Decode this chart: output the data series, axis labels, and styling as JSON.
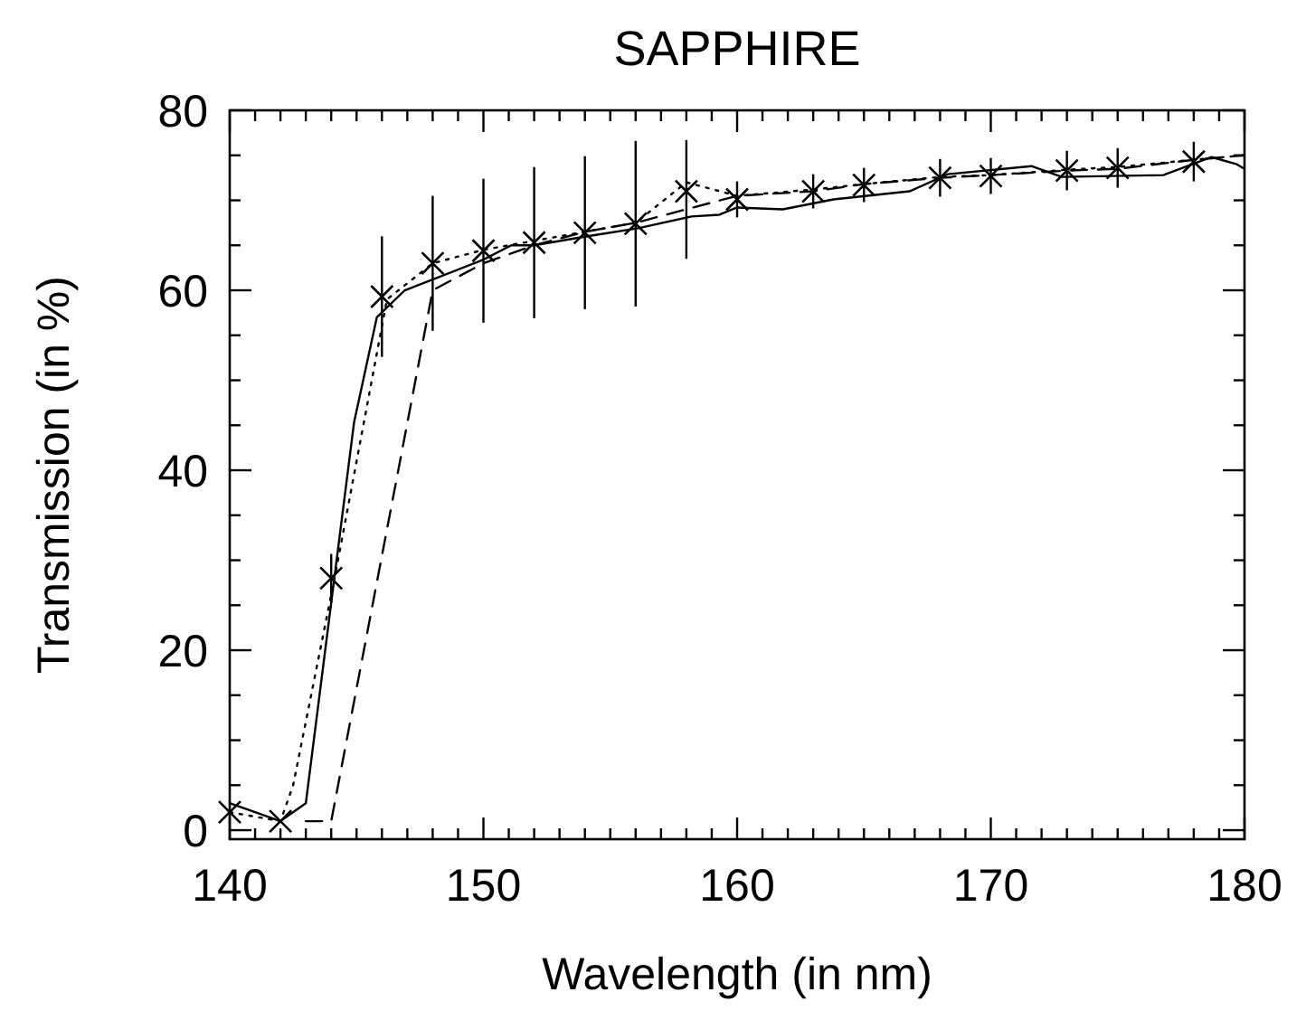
{
  "chart_data": {
    "type": "line",
    "title": "SAPPHIRE",
    "xlabel": "Wavelength (in nm)",
    "ylabel": "Transmission (in %)",
    "xlim": [
      140,
      180
    ],
    "ylim": [
      -1,
      80
    ],
    "xticks": [
      140,
      {
        "value": 141,
        "label": null
      },
      {
        "value": 142,
        "label": null
      },
      {
        "value": 143,
        "label": null
      },
      {
        "value": 144,
        "label": null
      },
      {
        "value": 145,
        "label": null
      },
      {
        "value": 146,
        "label": null
      },
      {
        "value": 147,
        "label": null
      },
      {
        "value": 148,
        "label": null
      },
      {
        "value": 149,
        "label": null
      },
      150,
      {
        "value": 151,
        "label": null
      },
      {
        "value": 152,
        "label": null
      },
      {
        "value": 153,
        "label": null
      },
      {
        "value": 154,
        "label": null
      },
      {
        "value": 155,
        "label": null
      },
      {
        "value": 156,
        "label": null
      },
      {
        "value": 157,
        "label": null
      },
      {
        "value": 158,
        "label": null
      },
      {
        "value": 159,
        "label": null
      },
      160,
      {
        "value": 161,
        "label": null
      },
      {
        "value": 162,
        "label": null
      },
      {
        "value": 163,
        "label": null
      },
      {
        "value": 164,
        "label": null
      },
      {
        "value": 165,
        "label": null
      },
      {
        "value": 166,
        "label": null
      },
      {
        "value": 167,
        "label": null
      },
      {
        "value": 168,
        "label": null
      },
      {
        "value": 169,
        "label": null
      },
      170,
      {
        "value": 171,
        "label": null
      },
      {
        "value": 172,
        "label": null
      },
      {
        "value": 173,
        "label": null
      },
      {
        "value": 174,
        "label": null
      },
      {
        "value": 175,
        "label": null
      },
      {
        "value": 176,
        "label": null
      },
      {
        "value": 177,
        "label": null
      },
      {
        "value": 178,
        "label": null
      },
      {
        "value": 179,
        "label": null
      },
      180
    ],
    "yticks": [
      0,
      {
        "value": 5,
        "label": null
      },
      {
        "value": 10,
        "label": null
      },
      {
        "value": 15,
        "label": null
      },
      20,
      {
        "value": 25,
        "label": null
      },
      {
        "value": 30,
        "label": null
      },
      {
        "value": 35,
        "label": null
      },
      40,
      {
        "value": 45,
        "label": null
      },
      {
        "value": 50,
        "label": null
      },
      {
        "value": 55,
        "label": null
      },
      60,
      {
        "value": 65,
        "label": null
      },
      {
        "value": 70,
        "label": null
      },
      {
        "value": 75,
        "label": null
      },
      80
    ],
    "grid": false,
    "series": [
      {
        "line_style": "solid",
        "color": "#000000",
        "x": [
          140,
          141,
          142,
          143,
          144.9,
          145.8,
          146.9,
          150,
          151.1,
          152,
          154.1,
          156.1,
          158.2,
          159.3,
          160,
          161.8,
          163.8,
          166.8,
          168.3,
          171.6,
          172.8,
          176.8,
          178.7,
          179.7,
          180
        ],
        "values": [
          3,
          2,
          1,
          3,
          45.3,
          57,
          60,
          63.4,
          65,
          65,
          66,
          66.9,
          68.2,
          68.4,
          69.2,
          69,
          70.1,
          71,
          72.9,
          73.8,
          72.6,
          72.8,
          74.8,
          74,
          73.5
        ]
      },
      {
        "line_style": "dashed",
        "color": "#000000",
        "x": [
          143,
          144,
          148,
          150,
          152,
          154,
          156,
          158,
          160,
          163,
          165,
          168,
          170,
          173,
          175,
          178,
          180
        ],
        "values": [
          1,
          1,
          60,
          63,
          65,
          66.5,
          67.5,
          69,
          70.5,
          71,
          71.8,
          72.5,
          72.8,
          73.3,
          73.5,
          74.5,
          75
        ]
      },
      {
        "line_style": "dotted",
        "color": "#000000",
        "x": [
          140,
          142,
          142.5,
          144.2,
          146.2,
          148,
          150,
          152,
          154,
          156,
          158,
          160,
          163,
          165,
          168,
          170,
          173,
          175,
          178,
          180
        ],
        "values": [
          2,
          1,
          5,
          29,
          59,
          63,
          64.5,
          65.5,
          66.5,
          67.5,
          72,
          70.5,
          71.2,
          71.8,
          72.6,
          72.8,
          73.4,
          73.7,
          74.5,
          75
        ]
      },
      {
        "type": "scatter",
        "marker": "cross",
        "color": "#000000",
        "x": [
          140,
          142,
          144,
          146,
          148,
          150,
          152,
          154,
          156,
          158,
          160,
          163,
          165,
          168,
          170,
          173,
          175,
          178
        ],
        "values": [
          2,
          1,
          28,
          59.3,
          63,
          64.4,
          65.3,
          66.4,
          67.4,
          71,
          70.1,
          71,
          71.7,
          72.5,
          72.7,
          73.3,
          73.6,
          74.3
        ],
        "errors": [
          null,
          null,
          2.7,
          6.7,
          7.5,
          8,
          8.4,
          8.5,
          9.2,
          [
            63.5,
            76.7
          ],
          2,
          1.9,
          1.9,
          2.1,
          2,
          2.2,
          2.2,
          2.2
        ]
      }
    ]
  }
}
